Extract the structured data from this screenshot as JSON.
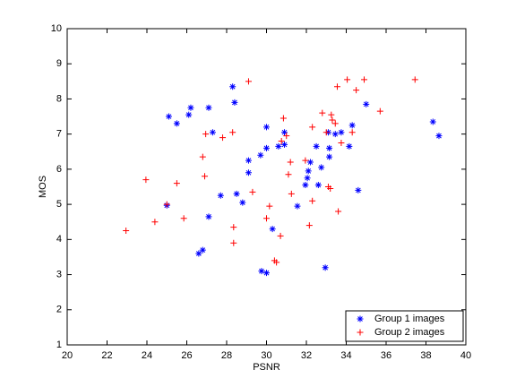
{
  "chart_data": {
    "type": "scatter",
    "x_label": "PSNR",
    "y_label": "MOS",
    "xlim": [
      20,
      40
    ],
    "ylim": [
      1,
      10
    ],
    "xticks": [
      20,
      22,
      24,
      26,
      28,
      30,
      32,
      34,
      36,
      38,
      40
    ],
    "yticks": [
      1,
      2,
      3,
      4,
      5,
      6,
      7,
      8,
      9,
      10
    ],
    "legend_location": "southeast",
    "series": [
      {
        "name": "Group 1 images",
        "color": "#0000ff",
        "marker": "asterisk",
        "x": [
          25.1,
          25.5,
          26.2,
          26.1,
          27.1,
          27.3,
          28.3,
          28.4,
          25.0,
          26.6,
          26.8,
          27.1,
          27.7,
          28.5,
          28.8,
          29.1,
          29.1,
          29.7,
          30.0,
          30.0,
          30.6,
          30.9,
          30.9,
          30.3,
          29.75,
          30.0,
          31.55,
          31.95,
          32.05,
          32.1,
          32.2,
          32.5,
          32.6,
          32.75,
          32.95,
          33.1,
          33.15,
          33.15,
          33.45,
          33.75,
          34.15,
          34.3,
          34.6,
          35.0,
          38.35,
          38.65
        ],
        "y": [
          7.5,
          7.3,
          7.75,
          7.55,
          7.75,
          7.05,
          8.35,
          7.9,
          4.97,
          3.6,
          3.7,
          4.65,
          5.25,
          5.3,
          5.05,
          6.25,
          5.9,
          6.4,
          7.2,
          6.6,
          6.65,
          7.05,
          6.7,
          4.3,
          3.1,
          3.05,
          4.95,
          5.55,
          5.75,
          5.95,
          6.2,
          6.65,
          5.55,
          6.05,
          3.2,
          7.05,
          6.6,
          6.35,
          7.0,
          7.05,
          6.65,
          7.25,
          5.4,
          7.85,
          7.35,
          6.95
        ]
      },
      {
        "name": "Group 2 images",
        "color": "#ff0000",
        "marker": "plus",
        "x": [
          22.95,
          23.95,
          24.4,
          25.0,
          25.5,
          25.85,
          26.8,
          26.9,
          26.95,
          27.8,
          28.3,
          28.35,
          28.35,
          29.1,
          29.3,
          30.0,
          30.15,
          30.4,
          30.5,
          30.7,
          30.75,
          30.85,
          31.0,
          31.1,
          31.2,
          31.25,
          31.95,
          32.15,
          32.3,
          32.3,
          32.8,
          33.0,
          33.1,
          33.2,
          33.25,
          33.45,
          33.55,
          33.6,
          33.75,
          34.05,
          34.3,
          34.5,
          34.9,
          35.7,
          37.45,
          33.3
        ],
        "y": [
          4.25,
          5.7,
          4.5,
          5.0,
          5.6,
          4.6,
          6.35,
          5.8,
          7.0,
          6.9,
          7.05,
          4.35,
          3.9,
          8.5,
          5.35,
          4.6,
          4.95,
          3.4,
          3.35,
          4.1,
          6.8,
          7.45,
          6.95,
          5.85,
          6.2,
          5.3,
          6.25,
          4.4,
          5.1,
          7.2,
          7.6,
          7.05,
          5.5,
          5.45,
          7.55,
          7.3,
          8.35,
          4.8,
          6.75,
          8.55,
          7.05,
          8.25,
          8.55,
          7.65,
          8.55,
          7.4
        ]
      }
    ]
  }
}
